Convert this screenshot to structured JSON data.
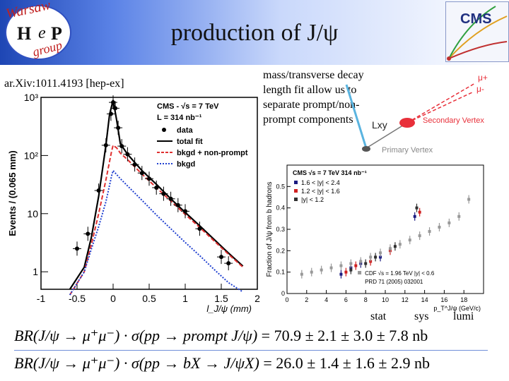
{
  "slide": {
    "title": "production of J/ψ",
    "reference": "ar.Xiv:1011.4193 [hep-ex]",
    "description": "mass/transverse decay length fit allow us to separate prompt/non-prompt components"
  },
  "logos": {
    "group_logo_text": "Warsaw HeP group",
    "cms_logo_text": "CMS"
  },
  "diagram": {
    "muon_plus": "μ+",
    "muon_minus": "μ-",
    "lxy": "Lxy",
    "secondary_vertex": "Secondary Vertex",
    "primary_vertex": "Primary Vertex",
    "colors": {
      "track": "#e8303a",
      "vertex": "#e8303a",
      "beam": "#5ab4e0",
      "primary": "#555555"
    }
  },
  "uncertainty_labels": {
    "stat": "stat",
    "sys": "sys",
    "lumi": "lumi"
  },
  "formulas": [
    {
      "lhs": "BR(J/ψ → μ⁺μ⁻) · σ(pp → prompt J/ψ)",
      "rhs": "= 70.9 ± 2.1 ± 3.0 ± 7.8 nb"
    },
    {
      "lhs": "BR(J/ψ → μ⁺μ⁻) · σ(pp → bX → J/ψX)",
      "rhs": "= 26.0 ± 1.4 ± 1.6 ± 2.9 nb"
    }
  ],
  "chart_data": [
    {
      "type": "line",
      "xlabel": "l_J/ψ (mm)",
      "ylabel": "Events / (0.065 mm)",
      "x_range": [
        -1,
        2
      ],
      "y_range": [
        0.5,
        1000
      ],
      "y_scale": "log",
      "x_ticks": [
        "-1",
        "-0.5",
        "0",
        "0.5",
        "1",
        "1.5",
        "2"
      ],
      "y_ticks": [
        {
          "v": 1,
          "label": "1"
        },
        {
          "v": 10,
          "label": "10"
        },
        {
          "v": 100,
          "label": "10²"
        },
        {
          "v": 1000,
          "label": "10³"
        }
      ],
      "legend_header": [
        "CMS - √s = 7 TeV",
        "L = 314 nb⁻¹"
      ],
      "legend_position": "top-right",
      "series": [
        {
          "name": "data",
          "style": "points",
          "color": "#000000",
          "x": [
            -0.5,
            -0.35,
            -0.2,
            -0.1,
            -0.03,
            0.0,
            0.03,
            0.07,
            0.12,
            0.2,
            0.3,
            0.4,
            0.5,
            0.6,
            0.7,
            0.8,
            0.9,
            1.0,
            1.2,
            1.5,
            1.6
          ],
          "y": [
            2.5,
            4.5,
            25,
            150,
            520,
            820,
            650,
            300,
            145,
            105,
            70,
            50,
            40,
            28,
            22,
            18,
            14,
            11,
            5.5,
            1.8,
            1.4
          ]
        },
        {
          "name": "total fit",
          "style": "solid",
          "color": "#000000",
          "x": [
            -0.6,
            -0.4,
            -0.3,
            -0.2,
            -0.1,
            -0.05,
            0.0,
            0.05,
            0.1,
            0.2,
            0.4,
            0.6,
            0.8,
            1.0,
            1.2,
            1.4,
            1.6,
            1.8
          ],
          "y": [
            0.5,
            1.2,
            4,
            20,
            150,
            500,
            900,
            400,
            160,
            105,
            55,
            32,
            18,
            10.5,
            6.2,
            3.6,
            2.1,
            1.25
          ]
        },
        {
          "name": "bkgd + non-prompt",
          "style": "dashed",
          "color": "#e03030",
          "x": [
            -0.6,
            -0.4,
            -0.3,
            -0.2,
            -0.1,
            -0.02,
            0.0,
            0.05,
            0.1,
            0.2,
            0.4,
            0.6,
            0.8,
            1.0,
            1.2,
            1.4,
            1.6,
            1.8
          ],
          "y": [
            0.4,
            1.0,
            3.0,
            10,
            38,
            120,
            150,
            135,
            110,
            85,
            48,
            28,
            16.5,
            9.7,
            5.8,
            3.4,
            2.0,
            1.2
          ]
        },
        {
          "name": "bkgd",
          "style": "dotted",
          "color": "#2040d0",
          "x": [
            -0.6,
            -0.4,
            -0.3,
            -0.2,
            -0.1,
            -0.02,
            0.0,
            0.1,
            0.2,
            0.4,
            0.6,
            0.8,
            1.0,
            1.2,
            1.4,
            1.6,
            1.8
          ],
          "y": [
            0.4,
            1.0,
            2.5,
            6,
            16,
            45,
            55,
            40,
            30,
            17,
            9.5,
            5.5,
            3.2,
            1.9,
            1.1,
            0.65,
            0.45
          ]
        }
      ]
    },
    {
      "type": "scatter",
      "xlabel": "p_T^J/ψ (GeV/c)",
      "ylabel": "Fraction of J/ψ from b hadrons",
      "x_range": [
        0,
        20
      ],
      "y_range": [
        0,
        0.6
      ],
      "x_ticks": [
        "0",
        "2",
        "4",
        "6",
        "8",
        "10",
        "12",
        "14",
        "16",
        "18"
      ],
      "y_ticks": [
        "0",
        "0.1",
        "0.2",
        "0.3",
        "0.4",
        "0.5"
      ],
      "legend_header": [
        "CMS √s = 7 TeV  314 nb⁻¹"
      ],
      "legend_footer": [
        "CDF √s = 1.96 TeV |y| < 0.6",
        "PRD 71 (2005) 032001"
      ],
      "legend_position": "top-left",
      "series": [
        {
          "name": "1.6 < |y| < 2.4",
          "color": "#1a1a80",
          "x": [
            5.5,
            6.5,
            7.5,
            9.5,
            13.0
          ],
          "y": [
            0.09,
            0.12,
            0.14,
            0.17,
            0.36
          ]
        },
        {
          "name": "1.2 < |y| < 1.6",
          "color": "#d02020",
          "x": [
            6.0,
            7.0,
            8.5,
            10.5,
            13.5
          ],
          "y": [
            0.1,
            0.13,
            0.15,
            0.2,
            0.38
          ]
        },
        {
          "name": "|y| < 1.2",
          "color": "#303030",
          "x": [
            6.5,
            8.0,
            9.0,
            11.0,
            13.2
          ],
          "y": [
            0.11,
            0.14,
            0.17,
            0.22,
            0.4
          ]
        },
        {
          "name": "CDF",
          "color": "#999999",
          "x": [
            1.5,
            2.5,
            3.5,
            4.5,
            5.5,
            6.5,
            7.5,
            8.5,
            9.5,
            10.5,
            11.5,
            12.5,
            13.5,
            14.5,
            15.5,
            16.5,
            17.5,
            18.5
          ],
          "y": [
            0.09,
            0.1,
            0.11,
            0.12,
            0.13,
            0.14,
            0.15,
            0.17,
            0.19,
            0.21,
            0.23,
            0.25,
            0.27,
            0.29,
            0.31,
            0.33,
            0.36,
            0.44
          ]
        }
      ]
    }
  ]
}
